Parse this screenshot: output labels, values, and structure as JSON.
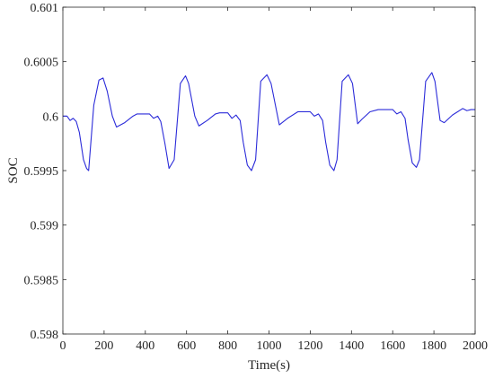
{
  "chart_data": {
    "type": "line",
    "title": "",
    "xlabel": "Time(s)",
    "ylabel": "SOC",
    "xlim": [
      0,
      2000
    ],
    "ylim": [
      0.598,
      0.601
    ],
    "x_ticks": [
      0,
      200,
      400,
      600,
      800,
      1000,
      1200,
      1400,
      1600,
      1800,
      2000
    ],
    "x_tick_labels": [
      "0",
      "200",
      "400",
      "600",
      "800",
      "1000",
      "1200",
      "1400",
      "1600",
      "1800",
      "2000"
    ],
    "y_ticks": [
      0.598,
      0.5985,
      0.599,
      0.5995,
      0.6,
      0.6005,
      0.601
    ],
    "y_tick_labels": [
      "0.598",
      "0.5985",
      "0.599",
      "0.5995",
      "0.6",
      "0.6005",
      "0.601"
    ],
    "grid": false,
    "line_color": "#2b2bd9",
    "series": [
      {
        "x": [
          0,
          20,
          35,
          50,
          65,
          80,
          100,
          115,
          125,
          150,
          175,
          195,
          215,
          240,
          260,
          300,
          340,
          360,
          380,
          400,
          420,
          440,
          460,
          475,
          495,
          515,
          540,
          570,
          595,
          610,
          640,
          660,
          700,
          740,
          760,
          780,
          800,
          820,
          840,
          860,
          875,
          895,
          915,
          935,
          960,
          990,
          1010,
          1050,
          1090,
          1140,
          1160,
          1180,
          1200,
          1220,
          1240,
          1260,
          1275,
          1295,
          1315,
          1330,
          1355,
          1385,
          1405,
          1430,
          1450,
          1490,
          1530,
          1550,
          1570,
          1600,
          1620,
          1640,
          1660,
          1675,
          1695,
          1715,
          1730,
          1760,
          1790,
          1805,
          1830,
          1850,
          1890,
          1940,
          1960,
          1980,
          2000
        ],
        "y": [
          0.6,
          0.6,
          0.59996,
          0.59998,
          0.59995,
          0.59985,
          0.5996,
          0.59952,
          0.5995,
          0.6001,
          0.60033,
          0.60035,
          0.60023,
          0.6,
          0.5999,
          0.59994,
          0.6,
          0.60002,
          0.60002,
          0.60002,
          0.60002,
          0.59998,
          0.6,
          0.59995,
          0.59975,
          0.59952,
          0.5996,
          0.6003,
          0.60037,
          0.6003,
          0.6,
          0.59991,
          0.59996,
          0.60002,
          0.60003,
          0.60003,
          0.60003,
          0.59998,
          0.60001,
          0.59996,
          0.59976,
          0.59955,
          0.5995,
          0.5996,
          0.60032,
          0.60038,
          0.6003,
          0.59992,
          0.59998,
          0.60004,
          0.60004,
          0.60004,
          0.60004,
          0.6,
          0.60002,
          0.59996,
          0.59976,
          0.59955,
          0.5995,
          0.5996,
          0.60032,
          0.60038,
          0.6003,
          0.59993,
          0.59997,
          0.60004,
          0.60006,
          0.60006,
          0.60006,
          0.60006,
          0.60002,
          0.60004,
          0.59998,
          0.59978,
          0.59957,
          0.59953,
          0.5996,
          0.60032,
          0.6004,
          0.60032,
          0.59996,
          0.59994,
          0.60001,
          0.60007,
          0.60005,
          0.60006,
          0.60006
        ]
      }
    ]
  }
}
